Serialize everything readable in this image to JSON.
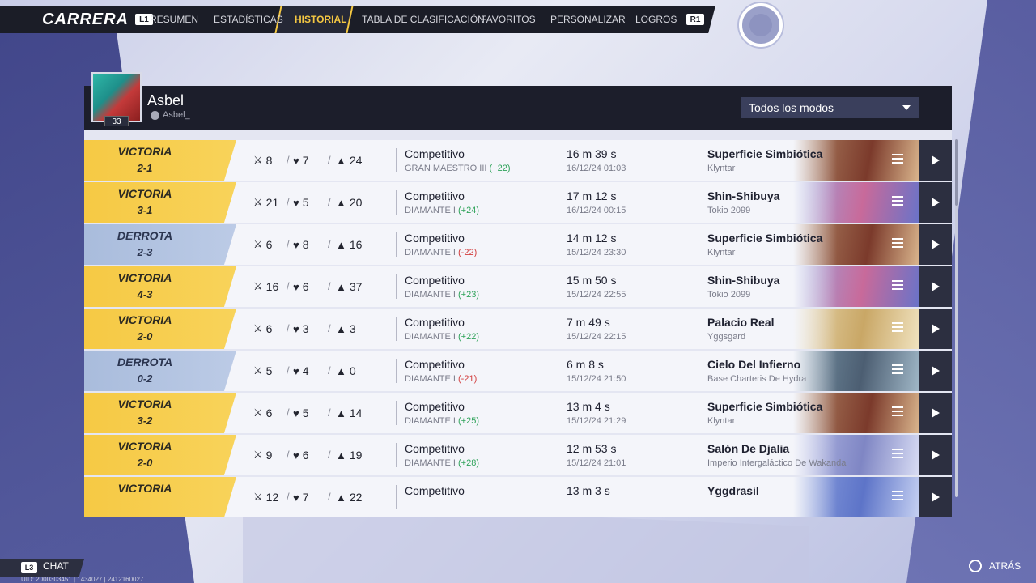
{
  "nav": {
    "brand": "CARRERA",
    "left_key": "L1",
    "right_key": "R1",
    "tabs": [
      "RESUMEN",
      "ESTADÍSTICAS",
      "HISTORIAL",
      "TABLA DE CLASIFICACIÓN",
      "FAVORITOS",
      "PERSONALIZAR",
      "LOGROS"
    ],
    "active_tab": "HISTORIAL"
  },
  "profile": {
    "name": "Asbel",
    "handle": "Asbel_",
    "level": "33"
  },
  "filter": {
    "selected": "Todos los modos"
  },
  "colors": {
    "win": "#f6c944",
    "loss": "#a9bcdc",
    "gain": "#2fa35a",
    "drop": "#d23c3c"
  },
  "matches": [
    {
      "result": "VICTORIA",
      "score": "2-1",
      "kills": "8",
      "deaths": "7",
      "assists": "24",
      "mode": "Competitivo",
      "rank": "GRAN MAESTRO III",
      "delta": "(+22)",
      "duration": "16 m 39 s",
      "date": "16/12/24 01:03",
      "map": "Superficie Simbiótica",
      "region": "Klyntar"
    },
    {
      "result": "VICTORIA",
      "score": "3-1",
      "kills": "21",
      "deaths": "5",
      "assists": "20",
      "mode": "Competitivo",
      "rank": "DIAMANTE I",
      "delta": "(+24)",
      "duration": "17 m 12 s",
      "date": "16/12/24 00:15",
      "map": "Shin-Shibuya",
      "region": "Tokio 2099"
    },
    {
      "result": "DERROTA",
      "score": "2-3",
      "kills": "6",
      "deaths": "8",
      "assists": "16",
      "mode": "Competitivo",
      "rank": "DIAMANTE I",
      "delta": "(-22)",
      "duration": "14 m 12 s",
      "date": "15/12/24 23:30",
      "map": "Superficie Simbiótica",
      "region": "Klyntar"
    },
    {
      "result": "VICTORIA",
      "score": "4-3",
      "kills": "16",
      "deaths": "6",
      "assists": "37",
      "mode": "Competitivo",
      "rank": "DIAMANTE I",
      "delta": "(+23)",
      "duration": "15 m 50 s",
      "date": "15/12/24 22:55",
      "map": "Shin-Shibuya",
      "region": "Tokio 2099"
    },
    {
      "result": "VICTORIA",
      "score": "2-0",
      "kills": "6",
      "deaths": "3",
      "assists": "3",
      "mode": "Competitivo",
      "rank": "DIAMANTE I",
      "delta": "(+22)",
      "duration": "7 m 49 s",
      "date": "15/12/24 22:15",
      "map": "Palacio Real",
      "region": "Yggsgard"
    },
    {
      "result": "DERROTA",
      "score": "0-2",
      "kills": "5",
      "deaths": "4",
      "assists": "0",
      "mode": "Competitivo",
      "rank": "DIAMANTE I",
      "delta": "(-21)",
      "duration": "6 m 8 s",
      "date": "15/12/24 21:50",
      "map": "Cielo Del Infierno",
      "region": "Base Charteris De Hydra"
    },
    {
      "result": "VICTORIA",
      "score": "3-2",
      "kills": "6",
      "deaths": "5",
      "assists": "14",
      "mode": "Competitivo",
      "rank": "DIAMANTE I",
      "delta": "(+25)",
      "duration": "13 m 4 s",
      "date": "15/12/24 21:29",
      "map": "Superficie Simbiótica",
      "region": "Klyntar"
    },
    {
      "result": "VICTORIA",
      "score": "2-0",
      "kills": "9",
      "deaths": "6",
      "assists": "19",
      "mode": "Competitivo",
      "rank": "DIAMANTE I",
      "delta": "(+28)",
      "duration": "12 m 53 s",
      "date": "15/12/24 21:01",
      "map": "Salón De Djalia",
      "region": "Imperio Intergaláctico De Wakanda"
    },
    {
      "result": "VICTORIA",
      "score": "",
      "kills": "12",
      "deaths": "7",
      "assists": "22",
      "mode": "Competitivo",
      "rank": "",
      "delta": "",
      "duration": "13 m 3 s",
      "date": "",
      "map": "Yggdrasil",
      "region": ""
    }
  ],
  "footer": {
    "chat_key": "L3",
    "chat_label": "CHAT",
    "uid": "UID: 2000303451 | 1434027 | 2412160027",
    "back_label": "ATRÁS"
  }
}
